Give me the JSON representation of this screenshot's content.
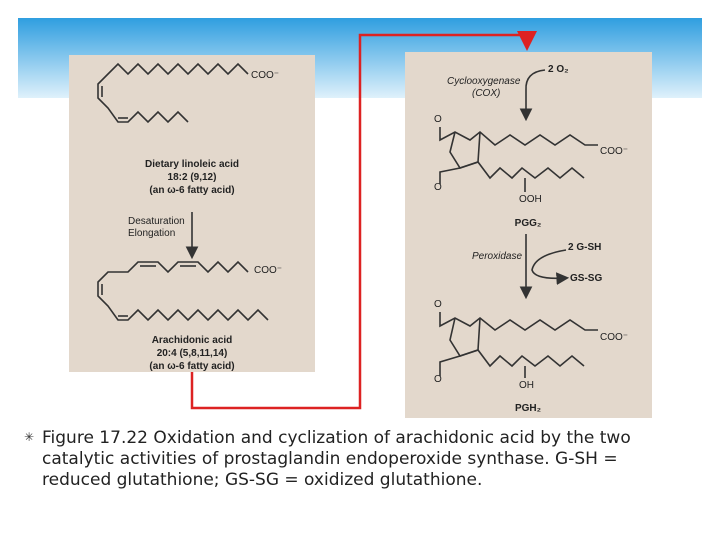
{
  "left_panel": {
    "linoleic_group": "COO⁻",
    "linoleic_name": "Dietary linoleic acid",
    "linoleic_formula": "18:2 (9,12)",
    "linoleic_class": "(an ω-6 fatty acid)",
    "step_1": "Desaturation",
    "step_2": "Elongation",
    "arachidonic_group": "COO⁻",
    "arachidonic_name": "Arachidonic acid",
    "arachidonic_formula": "20:4 (5,8,11,14)",
    "arachidonic_class": "(an ω-6 fatty acid)"
  },
  "right_panel": {
    "oxygen": "2 O₂",
    "enzyme_1": "Cyclooxygenase",
    "enzyme_1_abbr": "(COX)",
    "pgg_o_top": "O",
    "pgg_group": "COO⁻",
    "pgg_o_bottom": "O",
    "pgg_ooh": "OOH",
    "pgg_name": "PGG₂",
    "gsh": "2 G-SH",
    "enzyme_2": "Peroxidase",
    "gssg": "GS-SG",
    "pgh_o_top": "O",
    "pgh_group": "COO⁻",
    "pgh_o_bottom": "O",
    "pgh_oh": "OH",
    "pgh_name": "PGH₂"
  },
  "caption": {
    "bullet": "✳",
    "text": "Figure 17.22 Oxidation and cyclization of arachidonic acid by the two catalytic activities of prostaglandin endoperoxide synthase. G-SH = reduced glutathione; GS-SG = oxidized glutathione."
  }
}
